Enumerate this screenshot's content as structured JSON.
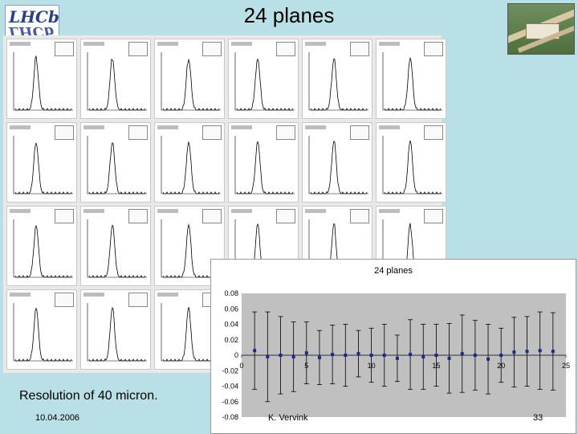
{
  "slide": {
    "title": "24 planes",
    "caption": "Resolution of 40 micron.",
    "date": "10.04.2006",
    "author": "K. Vervink",
    "page_number": "33"
  },
  "logo": {
    "top": "LHCb",
    "mirror": "LHCb"
  },
  "colors": {
    "background": "#b9e0e6",
    "plot_area": "#c0c0c0",
    "marker": "#1a2a8c",
    "errorbar": "#000000"
  },
  "chart_data": {
    "type": "scatter",
    "title": "24 planes",
    "xlabel": "",
    "ylabel": "",
    "xlim": [
      0,
      25
    ],
    "ylim": [
      -0.08,
      0.08
    ],
    "x_ticks": [
      "0",
      "5",
      "10",
      "15",
      "20",
      "25"
    ],
    "y_ticks": [
      "0.08",
      "0.06",
      "0.04",
      "0.02",
      "0",
      "-0.02",
      "-0.04",
      "-0.06",
      "-0.08"
    ],
    "grid": false,
    "series": [
      {
        "x": [
          1,
          2,
          3,
          4,
          5,
          6,
          7,
          8,
          9,
          10,
          11,
          12,
          13,
          14,
          15,
          16,
          17,
          18,
          19,
          20,
          21,
          22,
          23,
          24
        ],
        "y": [
          0.006,
          -0.002,
          0.0,
          -0.002,
          0.003,
          -0.003,
          0.001,
          0.0,
          0.002,
          0.0,
          0.0,
          -0.004,
          0.001,
          -0.002,
          0.0,
          -0.004,
          0.002,
          0.0,
          -0.005,
          0.0,
          0.004,
          0.005,
          0.006,
          0.005
        ],
        "err": [
          0.05,
          0.058,
          0.05,
          0.045,
          0.04,
          0.035,
          0.038,
          0.04,
          0.03,
          0.035,
          0.04,
          0.03,
          0.045,
          0.042,
          0.04,
          0.045,
          0.05,
          0.045,
          0.045,
          0.035,
          0.045,
          0.045,
          0.05,
          0.05
        ]
      }
    ]
  }
}
